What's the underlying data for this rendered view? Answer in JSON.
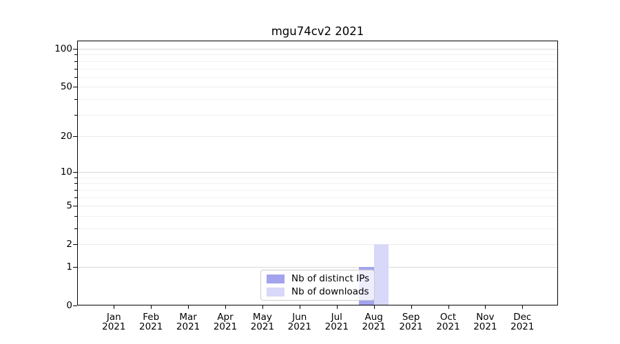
{
  "chart_data": {
    "type": "bar",
    "title": "mgu74cv2 2021",
    "categories": [
      "Jan 2021",
      "Feb 2021",
      "Mar 2021",
      "Apr 2021",
      "May 2021",
      "Jun 2021",
      "Jul 2021",
      "Aug 2021",
      "Sep 2021",
      "Oct 2021",
      "Nov 2021",
      "Dec 2021"
    ],
    "series": [
      {
        "name": "Nb of distinct IPs",
        "color": "#a3a3ee",
        "values": [
          0,
          0,
          0,
          0,
          0,
          0,
          0,
          1,
          0,
          0,
          0,
          0
        ]
      },
      {
        "name": "Nb of downloads",
        "color": "#d8d8f8",
        "values": [
          0,
          0,
          0,
          0,
          0,
          0,
          0,
          2,
          0,
          0,
          0,
          0
        ]
      }
    ],
    "yscale": "log10(value+1)",
    "ylim": [
      0,
      117
    ],
    "yticks": [
      0,
      1,
      2,
      5,
      10,
      20,
      50,
      100
    ],
    "yticks_minor": [
      3,
      4,
      6,
      7,
      8,
      9,
      30,
      40,
      60,
      70,
      80,
      90
    ],
    "grid": "horizontal",
    "legend_position": "lower center"
  },
  "colors": {
    "decade_grid": "#d9d9d9",
    "labeled_grid": "#ebebeb",
    "minor_grid": "#f1f1f1",
    "spine": "#000000",
    "legend_border": "#cccccc"
  }
}
